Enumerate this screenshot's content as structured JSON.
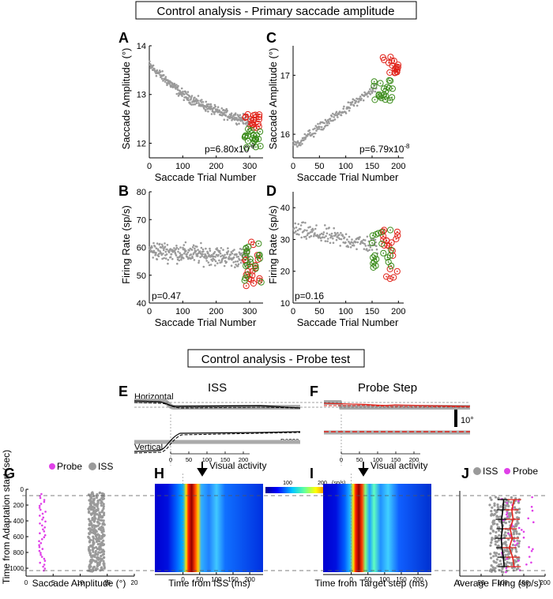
{
  "section1_title": "Control analysis - Primary saccade amplitude",
  "section2_title": "Control analysis - Probe test",
  "colors": {
    "gray": "#9a9a9a",
    "red": "#e0231a",
    "green": "#3c8c1c",
    "magenta": "#e040e8",
    "black": "#000000"
  },
  "panels": {
    "A": {
      "letter": "A",
      "ylabel": "Saccade Amplitude (°)",
      "xlabel": "Saccade Trial Number",
      "pvalue": "p=6.80x10",
      "pexp": "-8"
    },
    "B": {
      "letter": "B",
      "ylabel": "Firing Rate (sp/s)",
      "xlabel": "Saccade Trial Number",
      "pvalue": "p=0.47"
    },
    "C": {
      "letter": "C",
      "ylabel": "Saccade Amplitude (°)",
      "xlabel": "Saccade Trial Number",
      "pvalue": "p=6.79x10",
      "pexp": "-8"
    },
    "D": {
      "letter": "D",
      "ylabel": "Firing Rate (sp/s)",
      "xlabel": "Saccade Trial Number",
      "pvalue": "p=0.16"
    },
    "E": {
      "letter": "E",
      "title": "ISS",
      "horizontal": "Horizontal",
      "vertical": "Vertical",
      "cell": "D0220"
    },
    "F": {
      "letter": "F",
      "title": "Probe Step",
      "scale": "10°"
    },
    "G": {
      "letter": "G",
      "ylabel": "Time from Adaptation start (sec)",
      "xlabel": "Saccade Amplitude (°)",
      "legend": [
        "Probe",
        "ISS"
      ]
    },
    "H": {
      "letter": "H",
      "xlabel": "Time from ISS (ms)",
      "annotation": "Visual activity",
      "colorbar_unit": "(sp/s)"
    },
    "I": {
      "letter": "I",
      "xlabel": "Time from Target step (ms)",
      "annotation": "Visual activity"
    },
    "J": {
      "letter": "J",
      "xlabel": "Average Firing (sp/s)",
      "legend": [
        "ISS",
        "Probe"
      ]
    }
  },
  "chart_data": [
    {
      "id": "A",
      "type": "scatter",
      "xlabel": "Saccade Trial Number",
      "ylabel": "Saccade Amplitude (°)",
      "xlim": [
        0,
        340
      ],
      "ylim": [
        11.7,
        14.0
      ],
      "xticks": [
        0,
        100,
        200,
        300
      ],
      "yticks": [
        12,
        13,
        14
      ],
      "series": [
        {
          "color": "gray",
          "n": 300,
          "x_range": [
            0,
            300
          ],
          "trend": [
            [
              0,
              13.6
            ],
            [
              100,
              13.0
            ],
            [
              200,
              12.65
            ],
            [
              300,
              12.45
            ]
          ],
          "spread": 0.15
        },
        {
          "color": "red",
          "n": 20,
          "x_range": [
            285,
            330
          ],
          "y_range": [
            12.3,
            12.6
          ]
        },
        {
          "color": "green",
          "n": 22,
          "x_range": [
            285,
            335
          ],
          "y_range": [
            11.9,
            12.3
          ]
        }
      ],
      "pvalue": "p=6.80x10-8"
    },
    {
      "id": "B",
      "type": "scatter",
      "xlabel": "Saccade Trial Number",
      "ylabel": "Firing Rate (sp/s)",
      "xlim": [
        0,
        340
      ],
      "ylim": [
        40,
        80
      ],
      "xticks": [
        0,
        100,
        200,
        300
      ],
      "yticks": [
        40,
        50,
        60,
        70,
        80
      ],
      "series": [
        {
          "color": "gray",
          "n": 300,
          "x_range": [
            0,
            300
          ],
          "trend": [
            [
              0,
              59
            ],
            [
              300,
              56
            ]
          ],
          "spread": 5
        },
        {
          "color": "red",
          "n": 20,
          "x_range": [
            285,
            330
          ],
          "y_range": [
            44,
            62
          ]
        },
        {
          "color": "green",
          "n": 20,
          "x_range": [
            285,
            335
          ],
          "y_range": [
            46,
            62
          ]
        }
      ],
      "pvalue": "p=0.47"
    },
    {
      "id": "C",
      "type": "scatter",
      "xlabel": "Saccade Trial Number",
      "ylabel": "Saccade Amplitude (°)",
      "xlim": [
        0,
        210
      ],
      "ylim": [
        15.6,
        17.5
      ],
      "xticks": [
        0,
        50,
        100,
        150,
        200
      ],
      "yticks": [
        16,
        17
      ],
      "series": [
        {
          "color": "gray",
          "n": 160,
          "x_range": [
            0,
            160
          ],
          "trend": [
            [
              0,
              15.8
            ],
            [
              80,
              16.3
            ],
            [
              160,
              16.8
            ]
          ],
          "spread": 0.12
        },
        {
          "color": "red",
          "n": 18,
          "x_range": [
            170,
            200
          ],
          "y_range": [
            17.0,
            17.35
          ]
        },
        {
          "color": "green",
          "n": 20,
          "x_range": [
            150,
            190
          ],
          "y_range": [
            16.55,
            16.95
          ]
        }
      ],
      "pvalue": "p=6.79x10-8"
    },
    {
      "id": "D",
      "type": "scatter",
      "xlabel": "Saccade Trial Number",
      "ylabel": "Firing Rate (sp/s)",
      "xlim": [
        0,
        210
      ],
      "ylim": [
        10,
        45
      ],
      "xticks": [
        0,
        50,
        100,
        150,
        200
      ],
      "yticks": [
        10,
        20,
        30,
        40
      ],
      "series": [
        {
          "color": "gray",
          "n": 160,
          "x_range": [
            0,
            160
          ],
          "trend": [
            [
              0,
              33
            ],
            [
              160,
              28
            ]
          ],
          "spread": 4
        },
        {
          "color": "red",
          "n": 20,
          "x_range": [
            170,
            200
          ],
          "y_range": [
            16,
            34
          ]
        },
        {
          "color": "green",
          "n": 20,
          "x_range": [
            150,
            190
          ],
          "y_range": [
            21,
            33
          ]
        }
      ],
      "pvalue": "p=0.16"
    },
    {
      "id": "G",
      "type": "scatter",
      "xlabel": "Saccade Amplitude (°)",
      "ylabel": "Time from Adaptation start (sec)",
      "xlim": [
        0,
        20
      ],
      "ylim": [
        0,
        1100
      ],
      "xticks": [
        0,
        5,
        10,
        15,
        20
      ],
      "yticks": [
        0,
        200,
        400,
        600,
        800,
        1000
      ],
      "series": [
        {
          "name": "Probe",
          "color": "magenta",
          "x_range": [
            2.3,
            3.6
          ],
          "y_range": [
            60,
            1030
          ]
        },
        {
          "name": "ISS",
          "color": "gray",
          "x_range": [
            11.5,
            14.5
          ],
          "y_range": [
            40,
            1040
          ]
        }
      ]
    },
    {
      "id": "H",
      "type": "heatmap",
      "xlabel": "Time from ISS (ms)",
      "xticks": [
        0,
        50,
        100,
        150,
        200
      ],
      "peak_ms": 80,
      "colorbar_ticks": [
        100,
        200
      ],
      "colorbar_unit": "(sp/s)"
    },
    {
      "id": "I",
      "type": "heatmap",
      "xlabel": "Time from Target step (ms)",
      "xticks": [
        0,
        50,
        100,
        150,
        200
      ],
      "peak_ms": 75
    },
    {
      "id": "J",
      "type": "scatter",
      "xlabel": "Average Firing (sp/s)",
      "xlim": [
        0,
        200
      ],
      "xticks": [
        0,
        50,
        100,
        150,
        200
      ],
      "series": [
        {
          "name": "ISS",
          "color": "gray",
          "x_range": [
            70,
            140
          ]
        },
        {
          "name": "Probe",
          "color": "magenta",
          "x_range": [
            95,
            175
          ]
        }
      ]
    }
  ]
}
